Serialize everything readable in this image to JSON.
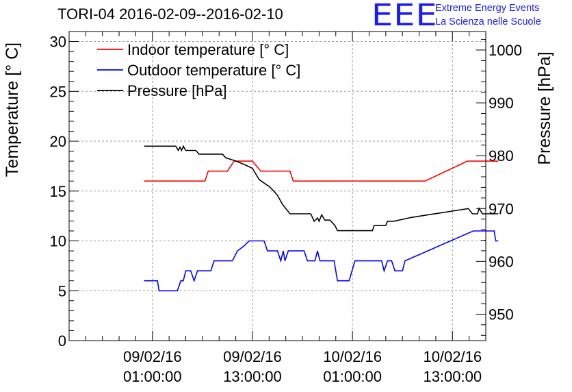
{
  "header": {
    "title": "TORI-04 2016-02-09--2016-02-10",
    "logo_mark": "EEE",
    "logo_line1": "Extreme Energy Events",
    "logo_line2": "La Scienza nelle Scuole"
  },
  "chart_data": {
    "type": "line",
    "title": "TORI-04 2016-02-09--2016-02-10",
    "xlabel": "",
    "ylabel": "Temperature [° C]",
    "y2label": "Pressure [hPa]",
    "xlim": [
      "2016-02-08 15:00",
      "2016-02-10 17:00"
    ],
    "ylim": [
      0,
      31
    ],
    "y2lim": [
      945,
      1003.5
    ],
    "grid": true,
    "legend_position": "top-left",
    "x_ticks": [
      {
        "t": "2016-02-09 01:00",
        "label": [
          "09/02/16",
          "01:00:00"
        ]
      },
      {
        "t": "2016-02-09 13:00",
        "label": [
          "09/02/16",
          "13:00:00"
        ]
      },
      {
        "t": "2016-02-10 01:00",
        "label": [
          "10/02/16",
          "01:00:00"
        ]
      },
      {
        "t": "2016-02-10 13:00",
        "label": [
          "10/02/16",
          "13:00:00"
        ]
      }
    ],
    "y_ticks": [
      0,
      5,
      10,
      15,
      20,
      25,
      30
    ],
    "y2_ticks": [
      950,
      960,
      970,
      980,
      990,
      1000
    ],
    "series": [
      {
        "name": "Indoor temperature [° C]",
        "color": "#ff0000",
        "axis": "left",
        "points": [
          [
            "2016-02-09 00:00",
            16
          ],
          [
            "2016-02-09 07:18",
            16
          ],
          [
            "2016-02-09 07:42",
            17
          ],
          [
            "2016-02-09 10:00",
            17
          ],
          [
            "2016-02-09 10:48",
            18
          ],
          [
            "2016-02-09 13:00",
            18
          ],
          [
            "2016-02-09 14:00",
            17
          ],
          [
            "2016-02-09 17:30",
            17
          ],
          [
            "2016-02-09 17:54",
            16
          ],
          [
            "2016-02-10 09:42",
            16
          ],
          [
            "2016-02-10 14:48",
            18
          ],
          [
            "2016-02-10 18:30",
            18
          ]
        ]
      },
      {
        "name": "Outdoor temperature [° C]",
        "color": "#0000ff",
        "axis": "left",
        "points": [
          [
            "2016-02-09 00:00",
            6
          ],
          [
            "2016-02-09 01:36",
            6
          ],
          [
            "2016-02-09 01:48",
            5
          ],
          [
            "2016-02-09 04:00",
            5
          ],
          [
            "2016-02-09 04:24",
            6
          ],
          [
            "2016-02-09 04:42",
            6
          ],
          [
            "2016-02-09 05:00",
            7
          ],
          [
            "2016-02-09 05:36",
            7
          ],
          [
            "2016-02-09 06:00",
            6
          ],
          [
            "2016-02-09 06:24",
            7
          ],
          [
            "2016-02-09 08:00",
            7
          ],
          [
            "2016-02-09 08:24",
            8
          ],
          [
            "2016-02-09 10:36",
            8
          ],
          [
            "2016-02-09 11:12",
            9
          ],
          [
            "2016-02-09 12:00",
            9.5
          ],
          [
            "2016-02-09 12:36",
            10
          ],
          [
            "2016-02-09 14:24",
            10
          ],
          [
            "2016-02-09 14:48",
            9
          ],
          [
            "2016-02-09 16:00",
            9
          ],
          [
            "2016-02-09 16:24",
            8
          ],
          [
            "2016-02-09 16:42",
            9
          ],
          [
            "2016-02-09 16:54",
            8
          ],
          [
            "2016-02-09 17:18",
            9
          ],
          [
            "2016-02-09 19:12",
            9
          ],
          [
            "2016-02-09 19:36",
            8
          ],
          [
            "2016-02-09 20:30",
            8
          ],
          [
            "2016-02-09 20:48",
            9
          ],
          [
            "2016-02-09 21:06",
            8
          ],
          [
            "2016-02-09 22:48",
            8
          ],
          [
            "2016-02-09 23:12",
            6
          ],
          [
            "2016-02-10 00:36",
            6
          ],
          [
            "2016-02-10 01:18",
            8
          ],
          [
            "2016-02-10 04:30",
            8
          ],
          [
            "2016-02-10 04:48",
            7
          ],
          [
            "2016-02-10 05:12",
            8
          ],
          [
            "2016-02-10 05:42",
            8
          ],
          [
            "2016-02-10 06:06",
            7
          ],
          [
            "2016-02-10 07:00",
            7
          ],
          [
            "2016-02-10 07:18",
            8
          ],
          [
            "2016-02-10 15:30",
            11
          ],
          [
            "2016-02-10 18:00",
            11
          ],
          [
            "2016-02-10 18:12",
            10
          ],
          [
            "2016-02-10 18:30",
            10
          ]
        ]
      },
      {
        "name": "Pressure [hPa]",
        "color": "#000000",
        "axis": "right",
        "points": [
          [
            "2016-02-09 00:00",
            981.8
          ],
          [
            "2016-02-09 03:48",
            981.8
          ],
          [
            "2016-02-09 04:06",
            981
          ],
          [
            "2016-02-09 04:18",
            981.6
          ],
          [
            "2016-02-09 04:30",
            981
          ],
          [
            "2016-02-09 04:42",
            981.8
          ],
          [
            "2016-02-09 05:00",
            981
          ],
          [
            "2016-02-09 06:12",
            981
          ],
          [
            "2016-02-09 06:36",
            980.3
          ],
          [
            "2016-02-09 09:24",
            980.3
          ],
          [
            "2016-02-09 09:48",
            979.6
          ],
          [
            "2016-02-09 11:00",
            979
          ],
          [
            "2016-02-09 12:12",
            978.2
          ],
          [
            "2016-02-09 13:00",
            977.6
          ],
          [
            "2016-02-09 13:48",
            975.5
          ],
          [
            "2016-02-09 14:36",
            974.6
          ],
          [
            "2016-02-09 15:00",
            974.2
          ],
          [
            "2016-02-09 15:30",
            973.4
          ],
          [
            "2016-02-09 16:00",
            972.5
          ],
          [
            "2016-02-09 16:36",
            970.8
          ],
          [
            "2016-02-09 17:00",
            970
          ],
          [
            "2016-02-09 17:30",
            969
          ],
          [
            "2016-02-09 18:42",
            969
          ],
          [
            "2016-02-09 20:00",
            969
          ],
          [
            "2016-02-09 20:24",
            967.6
          ],
          [
            "2016-02-09 20:48",
            968.2
          ],
          [
            "2016-02-09 21:00",
            967.6
          ],
          [
            "2016-02-09 21:18",
            968.8
          ],
          [
            "2016-02-09 21:42",
            967.8
          ],
          [
            "2016-02-09 22:18",
            967.8
          ],
          [
            "2016-02-09 22:54",
            966.8
          ],
          [
            "2016-02-09 23:12",
            965.8
          ],
          [
            "2016-02-10 02:00",
            965.8
          ],
          [
            "2016-02-10 03:24",
            965.8
          ],
          [
            "2016-02-10 03:36",
            966.8
          ],
          [
            "2016-02-10 05:00",
            966.8
          ],
          [
            "2016-02-10 05:12",
            967.6
          ],
          [
            "2016-02-10 06:00",
            967.6
          ],
          [
            "2016-02-10 08:00",
            968.3
          ],
          [
            "2016-02-10 14:54",
            970
          ],
          [
            "2016-02-10 15:24",
            969
          ],
          [
            "2016-02-10 16:00",
            969
          ],
          [
            "2016-02-10 16:12",
            970
          ],
          [
            "2016-02-10 16:36",
            969
          ],
          [
            "2016-02-10 18:30",
            969
          ]
        ]
      }
    ]
  }
}
